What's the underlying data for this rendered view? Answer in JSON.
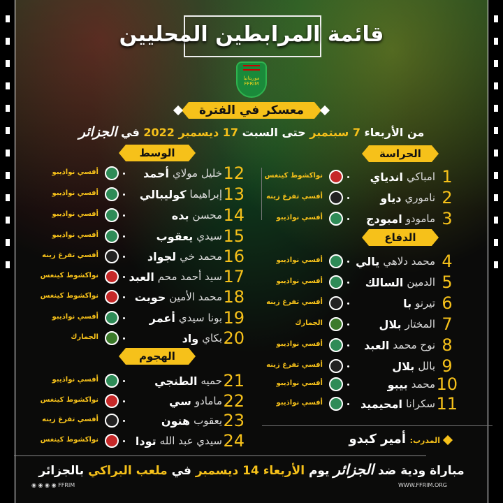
{
  "title": "قائمة المرابطين المحليين",
  "crest_text": "موريتانيا FFRIM",
  "period_label": "معسكر في الفترة",
  "period": {
    "p1": "من الأربعاء ",
    "d1": "7 سبتمبر",
    "p2": " حتى السبت ",
    "d2": "17 ديسمبر",
    "p3": " 2022 ",
    "p4": " في ",
    "place": "الجزائر"
  },
  "sections": {
    "gk": "الحراسة",
    "def": "الدفاع",
    "mid": "الوسط",
    "att": "الهجوم"
  },
  "colors": {
    "accent": "#f6c11a",
    "nouadhibou": "#2e8b57",
    "tevragh": "#222222",
    "kings": "#c62828",
    "douane": "#3b7a2a"
  },
  "players": [
    {
      "num": "1",
      "first": "امباكي",
      "last": "اندياي",
      "club": "نواكشوط كينغس",
      "logo": "kings"
    },
    {
      "num": "2",
      "first": "ناموري",
      "last": "دياو",
      "club": "أفسي تفرغ زينه",
      "logo": "tevragh"
    },
    {
      "num": "3",
      "first": "مامودو",
      "last": "امبودج",
      "club": "أفسي نواذيبو",
      "logo": "nouadhibou"
    },
    {
      "num": "4",
      "first": "محمد دلاهي",
      "last": "يالي",
      "club": "أفسي نواذيبو",
      "logo": "nouadhibou"
    },
    {
      "num": "5",
      "first": "الدمين",
      "last": "السالك",
      "club": "أفسي نواذيبو",
      "logo": "nouadhibou"
    },
    {
      "num": "6",
      "first": "تيرنو",
      "last": "با",
      "club": "أفسي تفرغ زينه",
      "logo": "tevragh"
    },
    {
      "num": "7",
      "first": "المختار",
      "last": "بلال",
      "club": "الجمارك",
      "logo": "douane"
    },
    {
      "num": "8",
      "first": "نوح محمد",
      "last": "العبد",
      "club": "أفسي نواذيبو",
      "logo": "nouadhibou"
    },
    {
      "num": "9",
      "first": "بالل",
      "last": "بلال",
      "club": "أفسي تفرغ زينه",
      "logo": "tevragh"
    },
    {
      "num": "10",
      "first": "محمد",
      "last": "بيبو",
      "club": "أفسي نواذيبو",
      "logo": "nouadhibou"
    },
    {
      "num": "11",
      "first": "سكرانا",
      "last": "امحيميد",
      "club": "أفسي نواذيبو",
      "logo": "nouadhibou"
    },
    {
      "num": "12",
      "first": "خليل مولاي",
      "last": "أحمد",
      "club": "أفسي نواذيبو",
      "logo": "nouadhibou"
    },
    {
      "num": "13",
      "first": "إبراهيما",
      "last": "كوليبالي",
      "club": "أفسي نواذيبو",
      "logo": "nouadhibou"
    },
    {
      "num": "14",
      "first": "محسن",
      "last": "بده",
      "club": "أفسي نواذيبو",
      "logo": "nouadhibou"
    },
    {
      "num": "15",
      "first": "سيدي",
      "last": "يعقوب",
      "club": "أفسي نواذيبو",
      "logo": "nouadhibou"
    },
    {
      "num": "16",
      "first": "محمد خي",
      "last": "لجواد",
      "club": "أفسي تفرغ زينه",
      "logo": "tevragh"
    },
    {
      "num": "17",
      "first": "سيد أحمد محم",
      "last": "العبد",
      "club": "نواكشوط كينغس",
      "logo": "kings"
    },
    {
      "num": "18",
      "first": "محمد الأمين",
      "last": "حوبت",
      "club": "نواكشوط كينغس",
      "logo": "kings"
    },
    {
      "num": "19",
      "first": "بونا سيدي",
      "last": "أعمر",
      "club": "أفسي نواذيبو",
      "logo": "nouadhibou"
    },
    {
      "num": "20",
      "first": "بكاي",
      "last": "واد",
      "club": "الجمارك",
      "logo": "douane"
    },
    {
      "num": "21",
      "first": "حميه",
      "last": "الطنجي",
      "club": "أفسي نواذيبو",
      "logo": "nouadhibou"
    },
    {
      "num": "22",
      "first": "مامادو",
      "last": "سي",
      "club": "نواكشوط كينغس",
      "logo": "kings"
    },
    {
      "num": "23",
      "first": "يعقوب",
      "last": "هنون",
      "club": "أفسي تفرغ زينه",
      "logo": "tevragh"
    },
    {
      "num": "24",
      "first": "سيدي عبد الله",
      "last": "تودا",
      "club": "نواكشوط كينغس",
      "logo": "kings"
    }
  ],
  "coach": {
    "label": "المدرب:",
    "name": "أمير كبدو"
  },
  "footer": {
    "a": "مباراة ودية ضد ",
    "team": "الجزائر",
    "b": " يوم ",
    "day": "الأربعاء 14 ديسمبر",
    "c": " في ",
    "venue": "ملعب البراكي",
    "d": " بالجزائر"
  },
  "social": "FFRIM",
  "website": "WWW.FFRIM.ORG"
}
